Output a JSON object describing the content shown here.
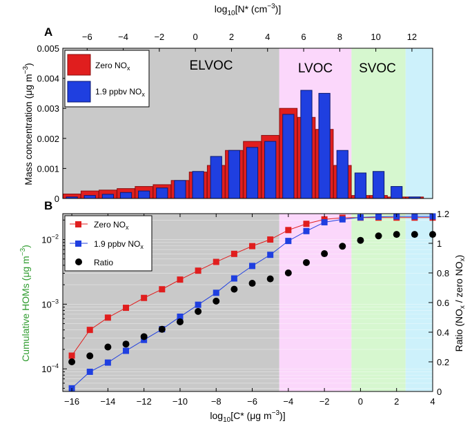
{
  "colors": {
    "red": "#e01e1e",
    "red_edge": "#8a1010",
    "blue": "#1f3fe0",
    "blue_edge": "#0b1a70",
    "elvoc_bg": "#c9c9c9",
    "lvoc_bg": "#fbd7fb",
    "svoc_bg": "#d6f7cf",
    "ivoc_bg": "#cdf1fb",
    "cum_ylabel": "#2c9a2c",
    "ratio": "#000000"
  },
  "chart_data": [
    {
      "panel": "A",
      "type": "bar",
      "xlabel_top": "log10[N* (cm-3)]",
      "ylabel": "Mass concentration (µg m-3)",
      "top_axis_ticks": [
        "-6",
        "-4",
        "-2",
        "0",
        "2",
        "4",
        "6",
        "8",
        "10",
        "12"
      ],
      "ylim": [
        0,
        0.005
      ],
      "yticks": [
        "0",
        "0.001",
        "0.002",
        "0.003",
        "0.004",
        "0.005"
      ],
      "regions": [
        {
          "label": "ELVOC",
          "from": -16.5,
          "to": -4.5
        },
        {
          "label": "LVOC",
          "from": -4.5,
          "to": -0.5
        },
        {
          "label": "SVOC",
          "from": -0.5,
          "to": 2.5
        },
        {
          "label": "",
          "from": 2.5,
          "to": 4.0
        }
      ],
      "x": [
        -16,
        -15,
        -14,
        -13,
        -12,
        -11,
        -10,
        -9,
        -8,
        -7,
        -6,
        -5,
        -4,
        -3,
        -2,
        -1,
        0,
        1,
        2,
        3
      ],
      "series": [
        {
          "name": "Zero NOx",
          "values": [
            0.00015,
            0.00025,
            0.00028,
            0.00033,
            0.0004,
            0.00046,
            0.0006,
            0.00088,
            0.0011,
            0.0016,
            0.0019,
            0.0021,
            0.003,
            0.0027,
            0.0023,
            0.0011,
            0.0001,
            0.0001,
            5e-05,
            5e-05
          ]
        },
        {
          "name": "1.9 ppbv NOx",
          "values": [
            5e-05,
            0.0001,
            0.00014,
            0.0002,
            0.00025,
            0.00035,
            0.0006,
            0.0009,
            0.0014,
            0.0016,
            0.0017,
            0.0019,
            0.0028,
            0.0036,
            0.0035,
            0.0016,
            0.00085,
            0.0009,
            0.0004,
            5e-05
          ]
        }
      ],
      "legend": {
        "location": "top-left",
        "entries": [
          "Zero NOx",
          "1.9 ppbv NOx"
        ]
      }
    },
    {
      "panel": "B",
      "type": "line",
      "xlabel": "log10[C* (µg m-3)]",
      "ylabel_left": "Cumulative HOMs (µg m-3)",
      "ylabel_right": "Ratio (NOx / zero NOx)",
      "xlim": [
        -16.5,
        4
      ],
      "xticks": [
        "-16",
        "-14",
        "-12",
        "-10",
        "-8",
        "-6",
        "-4",
        "-2",
        "0",
        "2",
        "4"
      ],
      "ylim_left_log10": [
        -4.35,
        -1.6
      ],
      "yticks_left": [
        "10-4",
        "10-3",
        "10-2"
      ],
      "ylim_right": [
        0,
        1.2
      ],
      "yticks_right": [
        "0",
        "0.2",
        "0.4",
        "0.6",
        "0.8",
        "1",
        "1.2"
      ],
      "x": [
        -16,
        -15,
        -14,
        -13,
        -12,
        -11,
        -10,
        -9,
        -8,
        -7,
        -6,
        -5,
        -4,
        -3,
        -2,
        -1,
        0,
        1,
        2,
        3,
        4
      ],
      "series": [
        {
          "name": "Zero NOx",
          "axis": "left",
          "values": [
            0.00016,
            0.0004,
            0.00062,
            0.00088,
            0.00125,
            0.0017,
            0.0024,
            0.0033,
            0.0045,
            0.006,
            0.0079,
            0.01,
            0.014,
            0.0175,
            0.0205,
            0.0217,
            0.0218,
            0.0218,
            0.0218,
            0.0218,
            0.0218
          ]
        },
        {
          "name": "1.9 ppbv NOx",
          "axis": "left",
          "values": [
            5e-05,
            9e-05,
            0.000125,
            0.00019,
            0.00028,
            0.00041,
            0.00064,
            0.00098,
            0.0015,
            0.0025,
            0.0039,
            0.0058,
            0.0095,
            0.0135,
            0.0185,
            0.0205,
            0.022,
            0.0225,
            0.0228,
            0.0228,
            0.0228
          ]
        },
        {
          "name": "Ratio",
          "axis": "right",
          "values": [
            0.2,
            0.24,
            0.3,
            0.32,
            0.37,
            0.42,
            0.47,
            0.54,
            0.61,
            0.69,
            0.73,
            0.76,
            0.8,
            0.87,
            0.93,
            0.98,
            1.02,
            1.05,
            1.06,
            1.06,
            1.06
          ]
        }
      ],
      "legend": {
        "location": "top-left",
        "entries": [
          "Zero NOx",
          "1.9 ppbv NOx",
          "Ratio"
        ]
      }
    }
  ],
  "labels": {
    "panel_a": "A",
    "panel_b": "B",
    "region_elvoc": "ELVOC",
    "region_lvoc": "LVOC",
    "region_svoc": "SVOC"
  }
}
